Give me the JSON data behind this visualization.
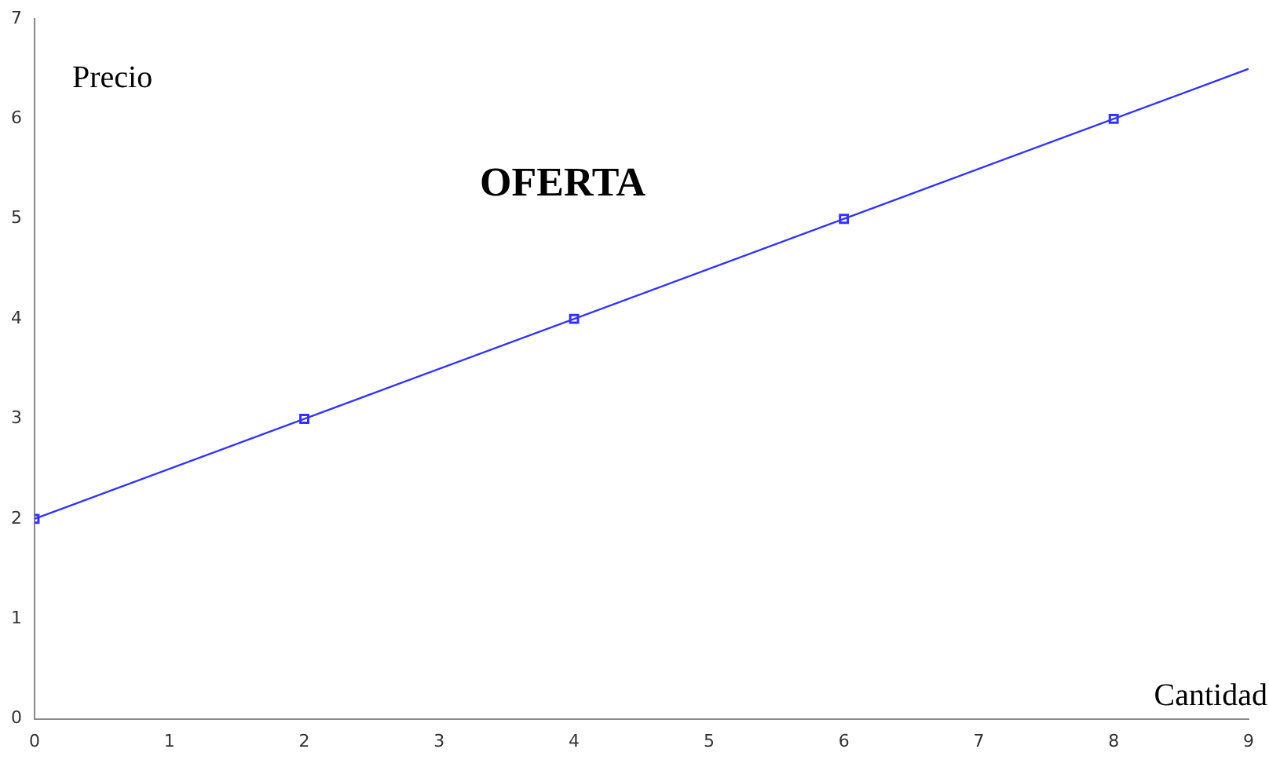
{
  "chart_data": {
    "type": "line",
    "title": "OFERTA",
    "xlabel": "Cantidad",
    "ylabel": "Precio",
    "xlim": [
      0,
      9
    ],
    "xticks": [
      0,
      1,
      2,
      3,
      4,
      5,
      6,
      7,
      8,
      9
    ],
    "ylim": [
      0,
      7
    ],
    "yticks": [
      0,
      1,
      2,
      3,
      4,
      5,
      6,
      7
    ],
    "grid": false,
    "legend": false,
    "series": [
      {
        "type": "line",
        "color": "#3333ff",
        "x": [
          0,
          9
        ],
        "values": [
          2,
          6.5
        ],
        "marker": "none",
        "line_style": "solid"
      },
      {
        "type": "scatter",
        "color": "#3333ff",
        "x": [
          0,
          2,
          4,
          6,
          8
        ],
        "values": [
          2,
          3,
          4,
          5,
          6
        ],
        "marker": "square"
      }
    ]
  }
}
